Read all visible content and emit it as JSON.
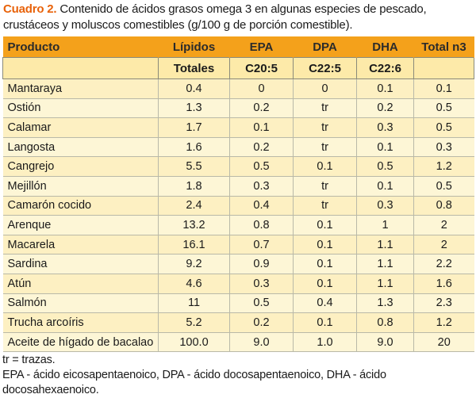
{
  "caption": {
    "label": "Cuadro 2.",
    "text": " Contenido de ácidos grasos omega 3 en algunas especies de pescado, crustáceos y moluscos comestibles (g/100 g de porción comestible)."
  },
  "headers": {
    "row1": [
      "Producto",
      "Lípidos",
      "EPA",
      "DPA",
      "DHA",
      "Total n3"
    ],
    "row2": [
      "",
      "Totales",
      "C20:5",
      "C22:5",
      "C22:6",
      ""
    ]
  },
  "rows": [
    [
      "Mantaraya",
      "0.4",
      "0",
      "0",
      "0.1",
      "0.1"
    ],
    [
      "Ostión",
      "1.3",
      "0.2",
      "tr",
      "0.2",
      "0.5"
    ],
    [
      "Calamar",
      "1.7",
      "0.1",
      "tr",
      "0.3",
      "0.5"
    ],
    [
      "Langosta",
      "1.6",
      "0.2",
      "tr",
      "0.1",
      "0.3"
    ],
    [
      "Cangrejo",
      "5.5",
      "0.5",
      "0.1",
      "0.5",
      "1.2"
    ],
    [
      "Mejillón",
      "1.8",
      "0.3",
      "tr",
      "0.1",
      "0.5"
    ],
    [
      "Camarón cocido",
      "2.4",
      "0.4",
      "tr",
      "0.3",
      "0.8"
    ],
    [
      "Arenque",
      "13.2",
      "0.8",
      "0.1",
      "1",
      "2"
    ],
    [
      "Macarela",
      "16.1",
      "0.7",
      "0.1",
      "1.1",
      "2"
    ],
    [
      "Sardina",
      "9.2",
      "0.9",
      "0.1",
      "1.1",
      "2.2"
    ],
    [
      "Atún",
      "4.6",
      "0.3",
      "0.1",
      "1.1",
      "1.6"
    ],
    [
      "Salmón",
      "11",
      "0.5",
      "0.4",
      "1.3",
      "2.3"
    ],
    [
      "Trucha arcoíris",
      "5.2",
      "0.2",
      "0.1",
      "0.8",
      "1.2"
    ],
    [
      "Aceite de hígado de bacalao",
      "100.0",
      "9.0",
      "1.0",
      "9.0",
      "20"
    ]
  ],
  "notes": [
    "tr = trazas.",
    "EPA - ácido eicosapentaenoico, DPA - ácido docosapentaenoico, DHA - ácido docosahexaenoico."
  ]
}
